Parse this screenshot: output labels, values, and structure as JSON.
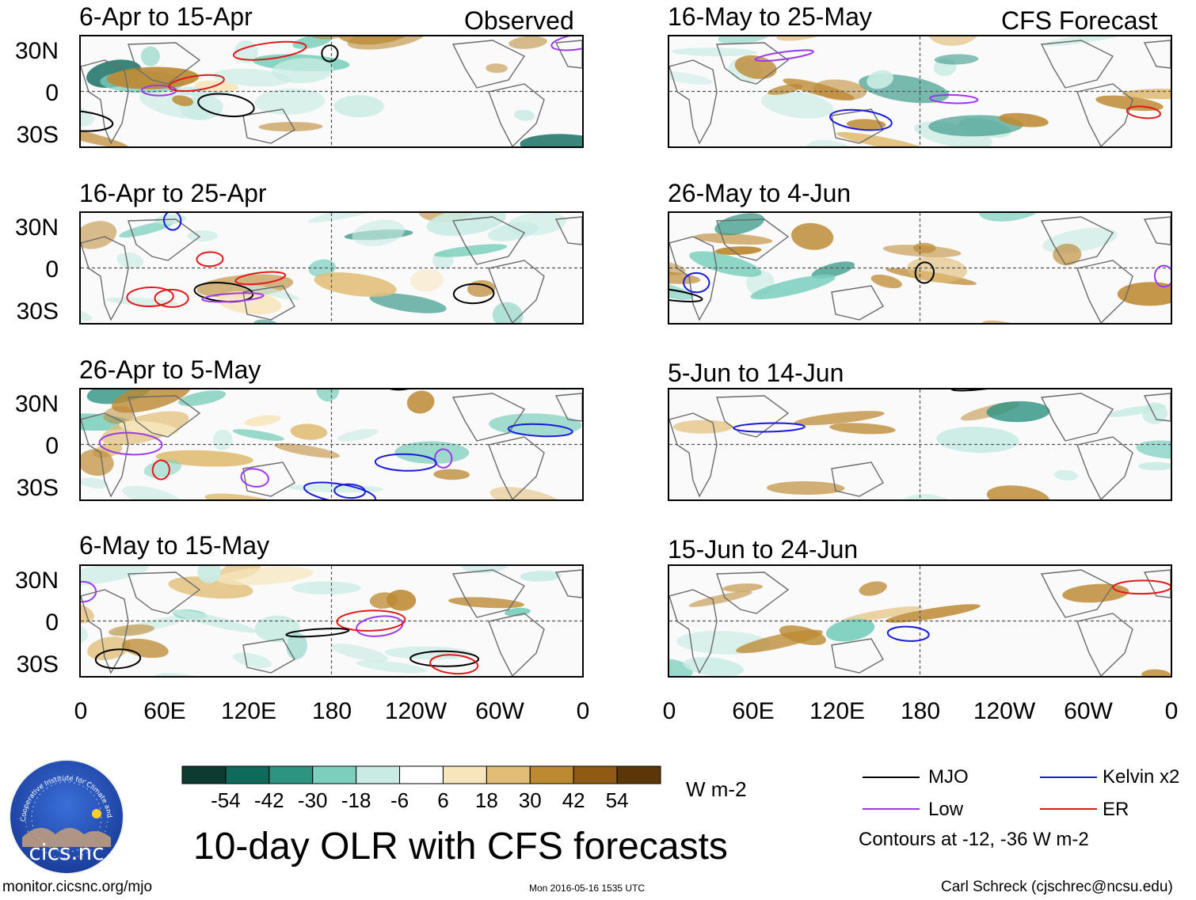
{
  "chart_data": {
    "type": "heatmap",
    "title": "10-day OLR with CFS forecasts",
    "observed_header": "Observed",
    "forecast_header": "CFS Forecast",
    "units": "W m-2",
    "y_ticks": [
      "30N",
      "0",
      "30S"
    ],
    "x_ticks": [
      "0",
      "60E",
      "120E",
      "180",
      "120W",
      "60W",
      "0"
    ],
    "observed_panels": [
      {
        "title": "6-Apr to 15-Apr"
      },
      {
        "title": "16-Apr to 25-Apr"
      },
      {
        "title": "26-Apr to 5-May"
      },
      {
        "title": "6-May to 15-May"
      }
    ],
    "forecast_panels": [
      {
        "title": "16-May to 25-May"
      },
      {
        "title": "26-May to 4-Jun"
      },
      {
        "title": "5-Jun to 14-Jun"
      },
      {
        "title": "15-Jun to 24-Jun"
      }
    ],
    "colorbar": {
      "labels": [
        "-54",
        "-42",
        "-30",
        "-18",
        "-6",
        "6",
        "18",
        "30",
        "42",
        "54"
      ],
      "colors": [
        "#0d3b32",
        "#0f6a5c",
        "#2e9482",
        "#7ccfbd",
        "#c9ebe3",
        "#ffffff",
        "#f7e6bd",
        "#e1be78",
        "#bd8a34",
        "#8f5a14",
        "#5a3608"
      ]
    },
    "legend": {
      "items": [
        {
          "label": "MJO",
          "color": "#000000"
        },
        {
          "label": "Kelvin x2",
          "color": "#1a1adb"
        },
        {
          "label": "Low",
          "color": "#9b3be8"
        },
        {
          "label": "ER",
          "color": "#e01a1a"
        }
      ],
      "note": "Contours at -12, -36 W m-2"
    }
  },
  "logo": {
    "text": "cics.nc",
    "arc_text": "Cooperative Institute for Climate and Satellites"
  },
  "footer": {
    "url": "monitor.cicsnc.org/mjo",
    "timestamp": "Mon 2016-05-16 1535 UTC",
    "author": "Carl Schreck (cjschrec@ncsu.edu)"
  }
}
